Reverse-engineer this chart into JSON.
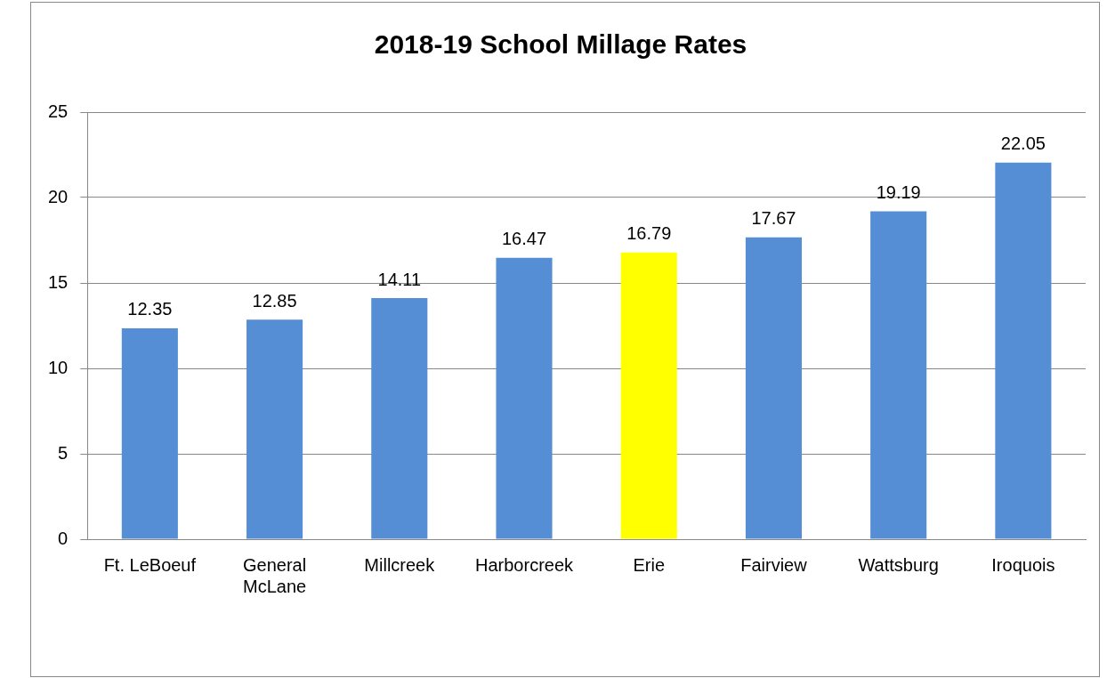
{
  "chart_data": {
    "type": "bar",
    "title": "2018-19 School Millage Rates",
    "categories": [
      "Ft. LeBoeuf",
      "General McLane",
      "Millcreek",
      "Harborcreek",
      "Erie",
      "Fairview",
      "Wattsburg",
      "Iroquois"
    ],
    "values": [
      12.35,
      12.85,
      14.11,
      16.47,
      16.79,
      17.67,
      19.19,
      22.05
    ],
    "colors": [
      "#558ed5",
      "#558ed5",
      "#558ed5",
      "#558ed5",
      "#ffff00",
      "#558ed5",
      "#558ed5",
      "#558ed5"
    ],
    "ylim": [
      0,
      25
    ],
    "yticks": [
      0,
      5,
      10,
      15,
      20,
      25
    ],
    "grid": "y",
    "data_labels": true
  }
}
